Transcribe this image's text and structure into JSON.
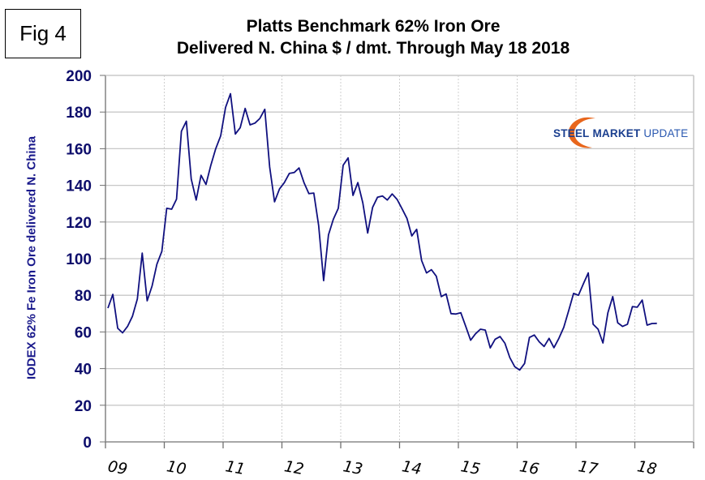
{
  "figure_label": "Fig 4",
  "logo": {
    "word1": "STEEL",
    "word2": "MARKET",
    "word3": "UPDATE",
    "arc_color": "#e8661c"
  },
  "chart_data": {
    "type": "line",
    "title": [
      "Platts Benchmark 62% Iron Ore",
      "Delivered N. China $ / dmt. Through May 18 2018"
    ],
    "xlabel": "",
    "ylabel": "IODEX 62% Fe Iron Ore delivered N. China",
    "ylim": [
      0,
      200
    ],
    "yticks": [
      0,
      20,
      40,
      60,
      80,
      100,
      120,
      140,
      160,
      180,
      200
    ],
    "xlim": [
      2009,
      2019
    ],
    "xtick_labels": [
      "09",
      "10",
      "11",
      "12",
      "13",
      "14",
      "15",
      "16",
      "17",
      "18"
    ],
    "grid": {
      "horizontal": true,
      "vertical": "dotted"
    },
    "line_color": "#10107f",
    "frequency": "monthly",
    "start": "2009-01",
    "end": "2018-05",
    "series": [
      {
        "name": "IODEX 62% Fe",
        "values": [
          73,
          80.5,
          62,
          59.5,
          63,
          68.5,
          78,
          103,
          77,
          85,
          97,
          104,
          127.5,
          127,
          132.5,
          169.5,
          175,
          143.5,
          132,
          145.5,
          140.5,
          151,
          160,
          167,
          182.5,
          190,
          168,
          171.5,
          182,
          173,
          174,
          176.5,
          181.5,
          150,
          131,
          138,
          141.5,
          146.5,
          147,
          149.5,
          141.5,
          135.5,
          135.8,
          118,
          88,
          113,
          121.5,
          127.5,
          151,
          155,
          134.5,
          141.5,
          130.5,
          114,
          128,
          133.5,
          134.2,
          132,
          135.3,
          132.3,
          127.3,
          122,
          112.4,
          116,
          99,
          92.2,
          94,
          90.4,
          79.3,
          80.7,
          70,
          69.8,
          70.5,
          63,
          55.5,
          59,
          61.5,
          61,
          51.3,
          56,
          57.5,
          53.8,
          46,
          41,
          39.2,
          42.8,
          57,
          58.3,
          54.6,
          52.1,
          56.5,
          51.4,
          56.5,
          62.5,
          71.5,
          81,
          80,
          86.3,
          92.2,
          64.2,
          61.5,
          54,
          70.5,
          79.3,
          65,
          63,
          64.2,
          73.8,
          73.5,
          77.4,
          63.7,
          64.6,
          64.7
        ]
      }
    ]
  }
}
